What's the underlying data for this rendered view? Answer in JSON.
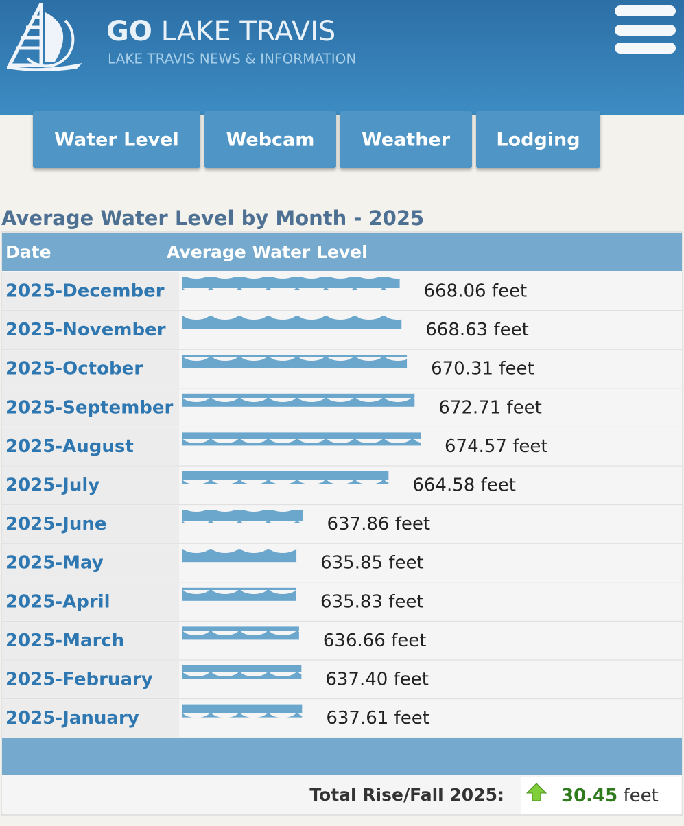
{
  "header": {
    "title_bold": "GO",
    "title_rest": "LAKE TRAVIS",
    "subtitle": "LAKE TRAVIS NEWS & INFORMATION"
  },
  "nav": [
    "Water Level",
    "Webcam",
    "Weather",
    "Lodging"
  ],
  "heading": "Average Water Level by Month - 2025",
  "table": {
    "columns": [
      "Date",
      "Average Water Level"
    ],
    "rows": [
      {
        "date": "2025-December",
        "level": 668.06,
        "label": "668.06 feet"
      },
      {
        "date": "2025-November",
        "level": 668.63,
        "label": "668.63 feet"
      },
      {
        "date": "2025-October",
        "level": 670.31,
        "label": "670.31 feet"
      },
      {
        "date": "2025-September",
        "level": 672.71,
        "label": "672.71 feet"
      },
      {
        "date": "2025-August",
        "level": 674.57,
        "label": "674.57 feet"
      },
      {
        "date": "2025-July",
        "level": 664.58,
        "label": "664.58 feet"
      },
      {
        "date": "2025-June",
        "level": 637.86,
        "label": "637.86 feet"
      },
      {
        "date": "2025-May",
        "level": 635.85,
        "label": "635.85 feet"
      },
      {
        "date": "2025-April",
        "level": 635.83,
        "label": "635.83 feet"
      },
      {
        "date": "2025-March",
        "level": 636.66,
        "label": "636.66 feet"
      },
      {
        "date": "2025-February",
        "level": 637.4,
        "label": "637.40 feet"
      },
      {
        "date": "2025-January",
        "level": 637.61,
        "label": "637.61 feet"
      }
    ],
    "total_label": "Total Rise/Fall 2025:",
    "total_value": "30.45",
    "total_unit": "feet"
  }
}
